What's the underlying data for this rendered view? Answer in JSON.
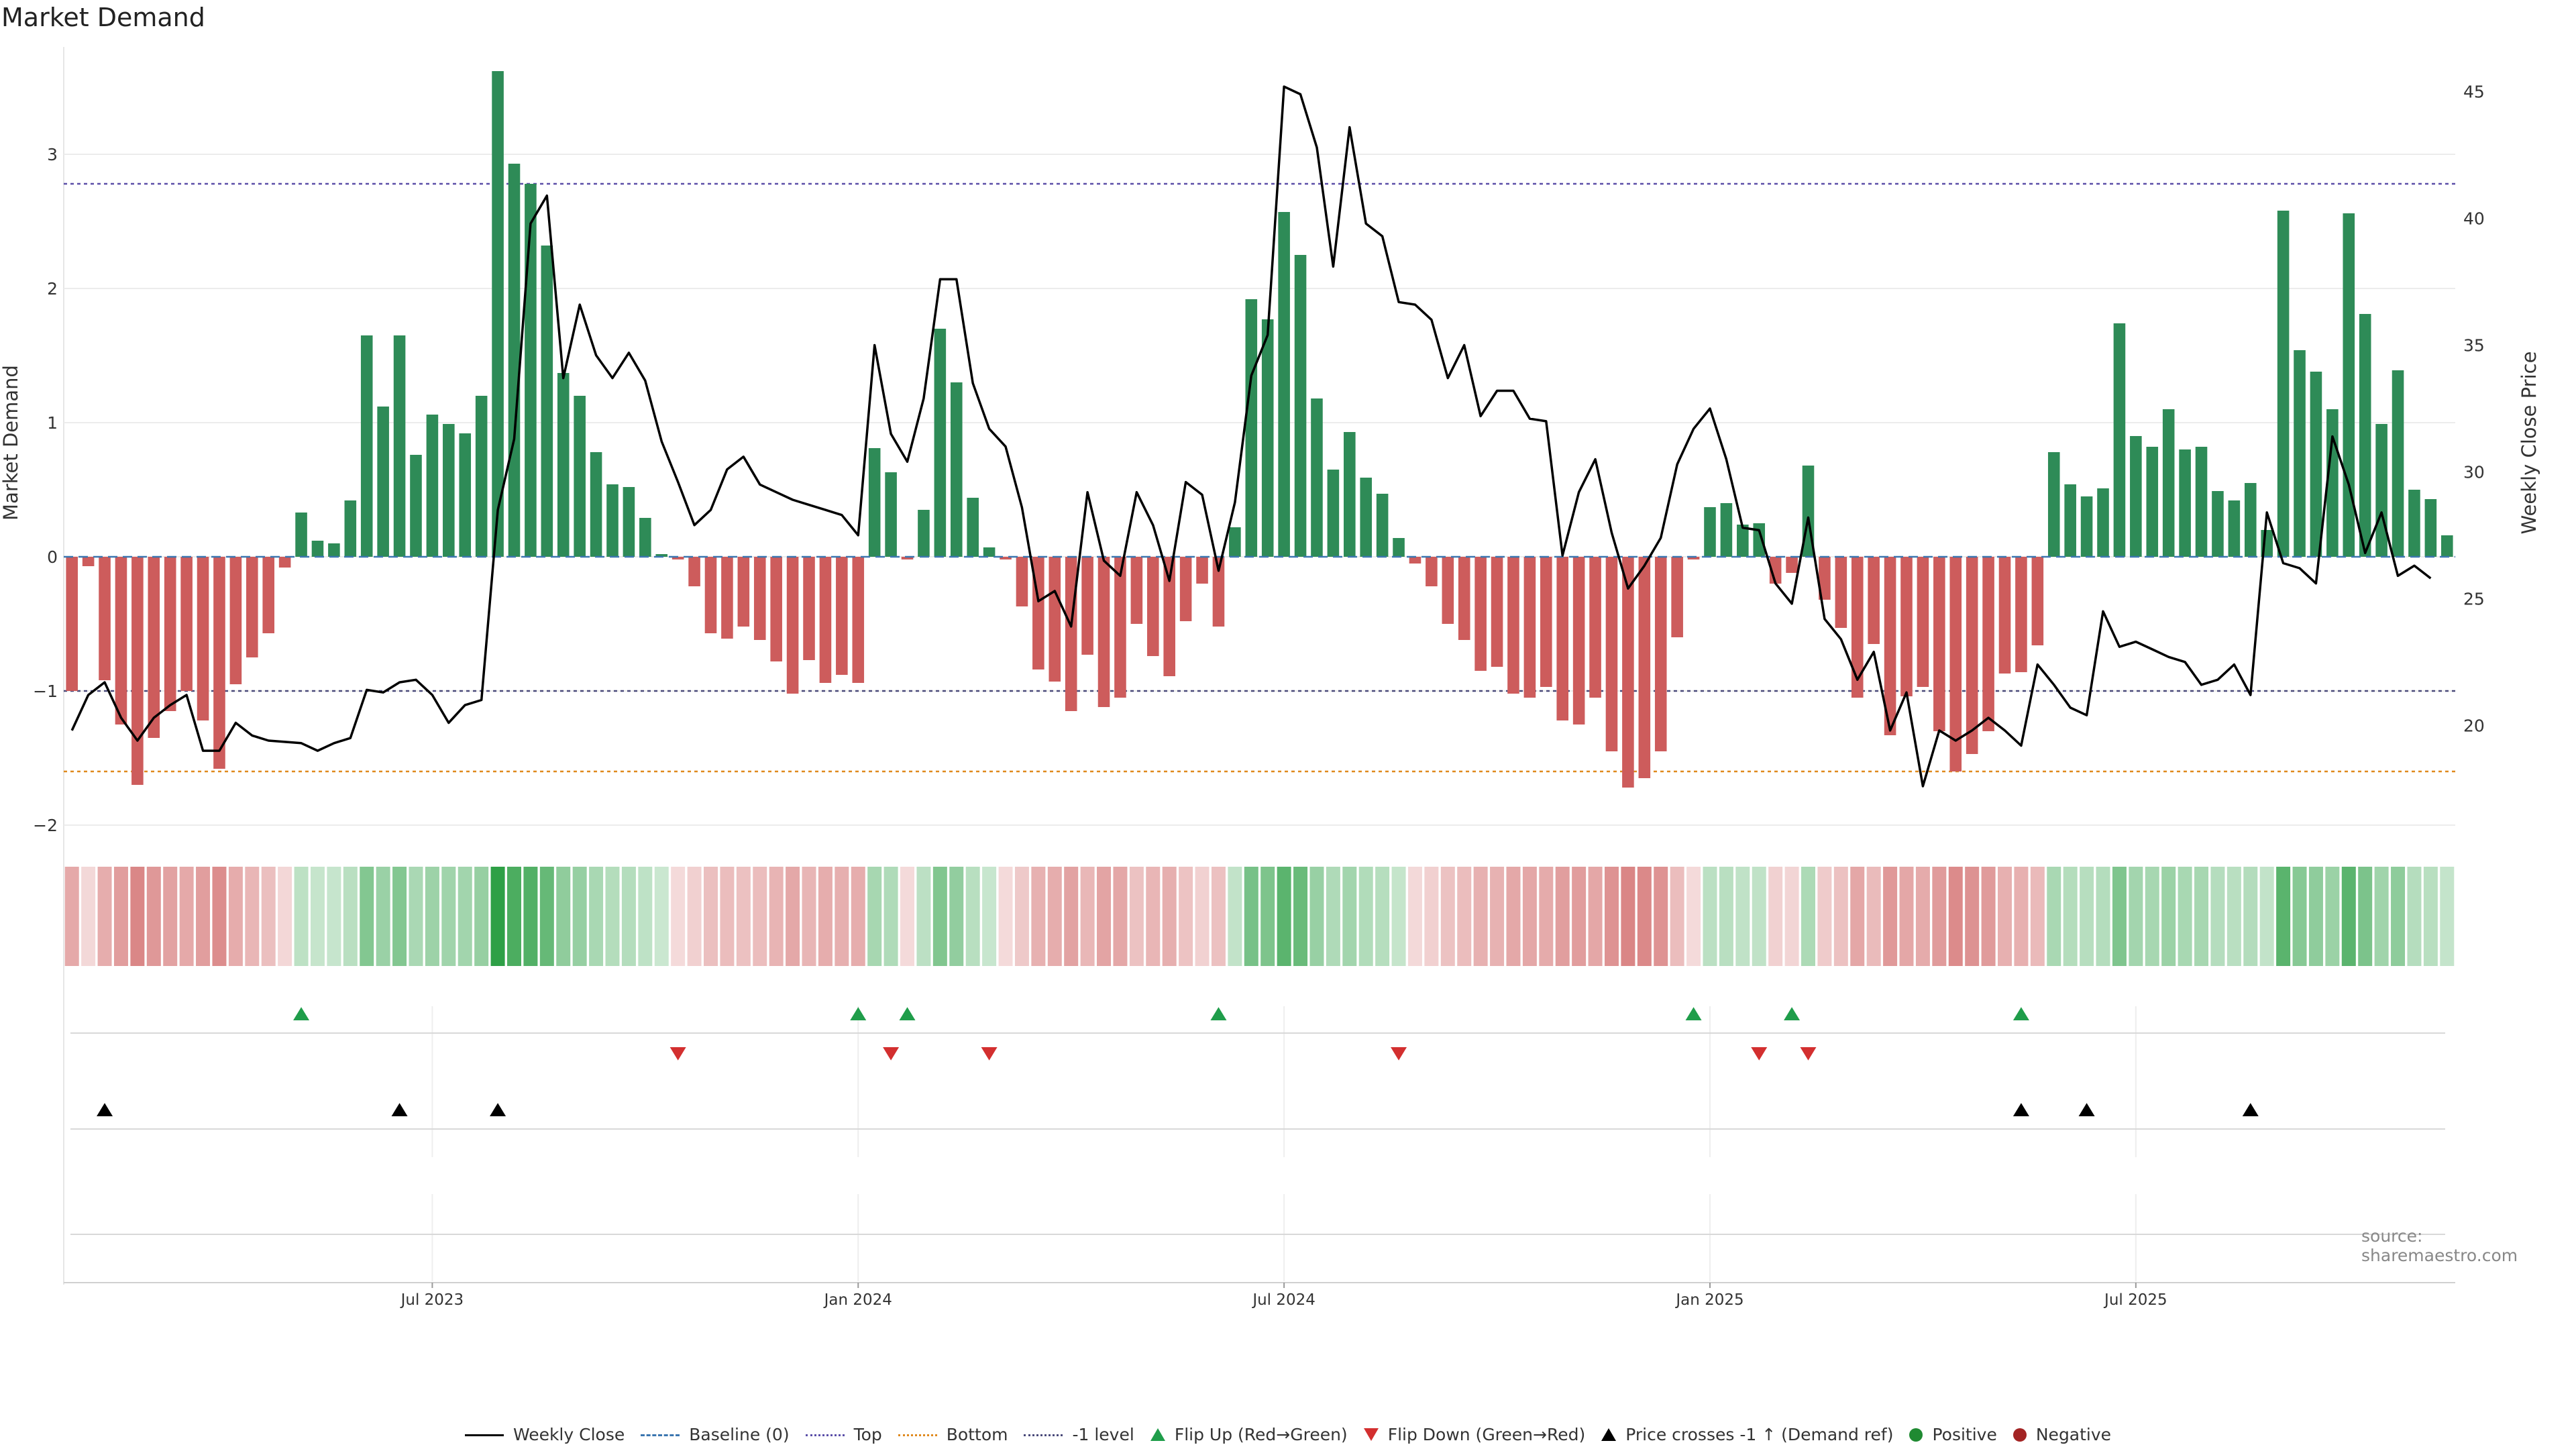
{
  "title": "Market Demand",
  "source": "source: sharemaestro.com",
  "legend": [
    {
      "label": "Weekly Close",
      "kind": "line"
    },
    {
      "label": "Baseline (0)",
      "kind": "dash"
    },
    {
      "label": "Top",
      "kind": "dotp"
    },
    {
      "label": "Bottom",
      "kind": "doto"
    },
    {
      "label": "-1 level",
      "kind": "dotg"
    },
    {
      "label": "Flip Up (Red→Green)",
      "kind": "tri-up-g"
    },
    {
      "label": "Flip Down (Green→Red)",
      "kind": "tri-down-r"
    },
    {
      "label": "Price crosses -1 ↑ (Demand ref)",
      "kind": "tri-up-k"
    },
    {
      "label": "Positive",
      "kind": "dot-pos"
    },
    {
      "label": "Negative",
      "kind": "dot-neg"
    }
  ],
  "colors": {
    "positive": "#2e8b57",
    "negative": "#cd5c5c",
    "price": "#000000",
    "top": "#5b4fa8",
    "bottom": "#e08a1e",
    "minus1": "#4a4a7a",
    "baseline": "#3b76b0"
  },
  "chart_data": {
    "type": "bar",
    "ylabel": "Market Demand",
    "y2label": "Weekly Close Price",
    "ylim": [
      -2.05,
      3.75
    ],
    "y2lim": [
      15.8,
      46.5
    ],
    "yticks": [
      -2,
      -1,
      0,
      1,
      2,
      3
    ],
    "y2ticks": [
      20,
      25,
      30,
      35,
      40,
      45
    ],
    "xticks": [
      {
        "index": 22,
        "label": "Jul 2023"
      },
      {
        "index": 48,
        "label": "Jan 2024"
      },
      {
        "index": 74,
        "label": "Jul 2024"
      },
      {
        "index": 100,
        "label": "Jan 2025"
      },
      {
        "index": 126,
        "label": "Jul 2025"
      }
    ],
    "reference_lines": {
      "top": 2.78,
      "bottom": -1.6,
      "minus1": -1.0,
      "baseline": 0
    },
    "demand": [
      -1.0,
      -0.07,
      -0.92,
      -1.25,
      -1.7,
      -1.35,
      -1.15,
      -1.0,
      -1.22,
      -1.58,
      -0.95,
      -0.75,
      -0.57,
      -0.08,
      0.33,
      0.12,
      0.1,
      0.42,
      1.65,
      1.12,
      1.65,
      0.76,
      1.06,
      0.99,
      0.92,
      1.2,
      3.62,
      2.93,
      2.78,
      2.32,
      1.37,
      1.2,
      0.78,
      0.54,
      0.52,
      0.29,
      0.02,
      -0.02,
      -0.22,
      -0.57,
      -0.61,
      -0.52,
      -0.62,
      -0.78,
      -1.02,
      -0.77,
      -0.94,
      -0.88,
      -0.94,
      0.81,
      0.63,
      -0.02,
      0.35,
      1.7,
      1.3,
      0.44,
      0.07,
      -0.02,
      -0.37,
      -0.84,
      -0.93,
      -1.15,
      -0.73,
      -1.12,
      -1.05,
      -0.5,
      -0.74,
      -0.89,
      -0.48,
      -0.2,
      -0.52,
      0.22,
      1.92,
      1.77,
      2.57,
      2.25,
      1.18,
      0.65,
      0.93,
      0.59,
      0.47,
      0.14,
      -0.05,
      -0.22,
      -0.5,
      -0.62,
      -0.85,
      -0.82,
      -1.02,
      -1.05,
      -0.97,
      -1.22,
      -1.25,
      -1.05,
      -1.45,
      -1.72,
      -1.65,
      -1.45,
      -0.6,
      -0.02,
      0.37,
      0.4,
      0.24,
      0.25,
      -0.2,
      -0.12,
      0.68,
      -0.32,
      -0.53,
      -1.05,
      -0.65,
      -1.33,
      -1.04,
      -0.97,
      -1.3,
      -1.6,
      -1.47,
      -1.3,
      -0.87,
      -0.86,
      -0.66,
      0.78,
      0.54,
      0.45,
      0.51,
      1.74,
      0.9,
      0.82,
      1.1,
      0.8,
      0.82,
      0.49,
      0.42,
      0.55,
      0.2,
      2.58,
      1.54,
      1.38,
      1.1,
      2.56,
      1.81,
      0.99,
      1.39,
      0.5,
      0.43,
      0.16
    ],
    "close": [
      19.8,
      21.2,
      21.7,
      20.3,
      19.4,
      20.3,
      20.8,
      21.2,
      19.0,
      19.0,
      20.1,
      19.6,
      19.4,
      19.35,
      19.3,
      19.0,
      19.3,
      19.5,
      21.4,
      21.3,
      21.7,
      21.8,
      21.2,
      20.1,
      20.8,
      21.0,
      28.5,
      31.3,
      39.8,
      40.9,
      33.7,
      36.6,
      34.6,
      33.7,
      34.7,
      33.6,
      31.2,
      29.6,
      27.9,
      28.5,
      30.1,
      30.6,
      29.5,
      29.2,
      28.9,
      28.7,
      28.5,
      28.3,
      27.5,
      35.0,
      31.5,
      30.4,
      32.9,
      37.6,
      37.6,
      33.5,
      31.7,
      31.0,
      28.6,
      24.9,
      25.3,
      23.9,
      29.2,
      26.5,
      25.9,
      29.2,
      27.9,
      25.7,
      29.6,
      29.1,
      26.1,
      28.8,
      33.8,
      35.4,
      45.2,
      44.9,
      42.8,
      38.1,
      43.6,
      39.8,
      39.3,
      36.7,
      36.6,
      36.0,
      33.7,
      35.0,
      32.2,
      33.2,
      33.2,
      32.1,
      32.0,
      26.7,
      29.2,
      30.5,
      27.6,
      25.4,
      26.3,
      27.4,
      30.3,
      31.7,
      32.5,
      30.5,
      27.8,
      27.7,
      25.6,
      24.8,
      28.2,
      24.2,
      23.4,
      21.8,
      22.9,
      19.8,
      21.3,
      17.6,
      19.8,
      19.4,
      19.8,
      20.3,
      19.8,
      19.2,
      22.4,
      21.6,
      20.7,
      20.4,
      24.5,
      23.1,
      23.3,
      23.0,
      22.7,
      22.5,
      21.6,
      21.8,
      22.4,
      21.2,
      28.4,
      26.4,
      26.2,
      25.6,
      31.4,
      29.5,
      26.8,
      28.4,
      25.9,
      26.3,
      25.8
    ],
    "flip_up": [
      14,
      48,
      51,
      70,
      99,
      105,
      119
    ],
    "flip_down": [
      37,
      50,
      56,
      81,
      103,
      106
    ],
    "price_crosses": [
      2,
      20,
      26,
      119,
      123,
      133
    ]
  }
}
